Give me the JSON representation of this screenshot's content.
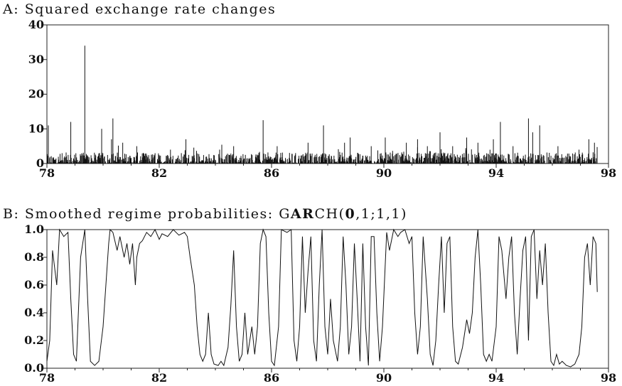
{
  "chart_data": [
    {
      "type": "bar",
      "title_prefix": "A",
      "title": "Squared exchange rate changes",
      "xlim": [
        78,
        98
      ],
      "ylim": [
        0,
        40
      ],
      "x_ticks": [
        "78",
        "82",
        "86",
        "90",
        "94",
        "98"
      ],
      "y_ticks": [
        "0",
        "10",
        "20",
        "30",
        "40"
      ],
      "data_end": 97.6,
      "spikes": [
        {
          "x": 78.05,
          "y": 11
        },
        {
          "x": 78.85,
          "y": 12
        },
        {
          "x": 79.35,
          "y": 34
        },
        {
          "x": 79.95,
          "y": 10
        },
        {
          "x": 80.35,
          "y": 13
        },
        {
          "x": 80.3,
          "y": 7
        },
        {
          "x": 80.7,
          "y": 6
        },
        {
          "x": 81.2,
          "y": 5
        },
        {
          "x": 82.4,
          "y": 4
        },
        {
          "x": 82.95,
          "y": 7
        },
        {
          "x": 84.15,
          "y": 4
        },
        {
          "x": 84.65,
          "y": 5
        },
        {
          "x": 85.7,
          "y": 12.5
        },
        {
          "x": 86.2,
          "y": 5
        },
        {
          "x": 87.3,
          "y": 6
        },
        {
          "x": 87.85,
          "y": 11
        },
        {
          "x": 88.6,
          "y": 6
        },
        {
          "x": 88.8,
          "y": 7.5
        },
        {
          "x": 89.55,
          "y": 5
        },
        {
          "x": 90.05,
          "y": 7.5
        },
        {
          "x": 90.8,
          "y": 6
        },
        {
          "x": 91.2,
          "y": 7
        },
        {
          "x": 91.55,
          "y": 5
        },
        {
          "x": 92.0,
          "y": 9
        },
        {
          "x": 92.45,
          "y": 5
        },
        {
          "x": 92.95,
          "y": 7.5
        },
        {
          "x": 93.35,
          "y": 6
        },
        {
          "x": 93.9,
          "y": 7
        },
        {
          "x": 94.15,
          "y": 12
        },
        {
          "x": 94.6,
          "y": 5
        },
        {
          "x": 95.15,
          "y": 13
        },
        {
          "x": 95.3,
          "y": 9
        },
        {
          "x": 95.55,
          "y": 11
        },
        {
          "x": 96.2,
          "y": 5
        },
        {
          "x": 96.95,
          "y": 4
        },
        {
          "x": 97.3,
          "y": 7
        },
        {
          "x": 97.5,
          "y": 6
        }
      ]
    },
    {
      "type": "line",
      "title_prefix": "B",
      "title_parts": [
        {
          "text": "Smoothed regime probabilities: G",
          "bold": false
        },
        {
          "text": "AR",
          "bold": true
        },
        {
          "text": "CH(",
          "bold": false
        },
        {
          "text": "0",
          "bold": true
        },
        {
          "text": ",1;1,1)",
          "bold": false
        }
      ],
      "xlim": [
        78,
        98
      ],
      "ylim": [
        0,
        1
      ],
      "x_ticks": [
        "78",
        "82",
        "86",
        "90",
        "94",
        "98"
      ],
      "y_ticks": [
        "0.0",
        "0.2",
        "0.4",
        "0.6",
        "0.8",
        "1.0"
      ],
      "points": [
        [
          78.0,
          0.05
        ],
        [
          78.1,
          0.2
        ],
        [
          78.2,
          0.85
        ],
        [
          78.35,
          0.6
        ],
        [
          78.45,
          1.0
        ],
        [
          78.6,
          0.95
        ],
        [
          78.75,
          0.98
        ],
        [
          78.85,
          0.5
        ],
        [
          78.95,
          0.1
        ],
        [
          79.05,
          0.05
        ],
        [
          79.2,
          0.8
        ],
        [
          79.35,
          1.0
        ],
        [
          79.45,
          0.5
        ],
        [
          79.55,
          0.05
        ],
        [
          79.7,
          0.02
        ],
        [
          79.85,
          0.05
        ],
        [
          80.0,
          0.3
        ],
        [
          80.1,
          0.6
        ],
        [
          80.2,
          0.9
        ],
        [
          80.25,
          1.0
        ],
        [
          80.35,
          0.98
        ],
        [
          80.5,
          0.85
        ],
        [
          80.6,
          0.95
        ],
        [
          80.75,
          0.8
        ],
        [
          80.85,
          0.9
        ],
        [
          80.95,
          0.75
        ],
        [
          81.05,
          0.9
        ],
        [
          81.15,
          0.6
        ],
        [
          81.2,
          0.8
        ],
        [
          81.3,
          0.9
        ],
        [
          81.4,
          0.92
        ],
        [
          81.55,
          0.98
        ],
        [
          81.7,
          0.95
        ],
        [
          81.85,
          1.0
        ],
        [
          82.0,
          0.93
        ],
        [
          82.1,
          0.97
        ],
        [
          82.3,
          0.95
        ],
        [
          82.5,
          1.0
        ],
        [
          82.7,
          0.96
        ],
        [
          82.9,
          0.98
        ],
        [
          83.0,
          0.95
        ],
        [
          83.1,
          0.8
        ],
        [
          83.25,
          0.6
        ],
        [
          83.35,
          0.3
        ],
        [
          83.45,
          0.1
        ],
        [
          83.55,
          0.05
        ],
        [
          83.65,
          0.1
        ],
        [
          83.75,
          0.4
        ],
        [
          83.85,
          0.1
        ],
        [
          83.95,
          0.03
        ],
        [
          84.1,
          0.02
        ],
        [
          84.2,
          0.05
        ],
        [
          84.3,
          0.02
        ],
        [
          84.45,
          0.15
        ],
        [
          84.55,
          0.45
        ],
        [
          84.65,
          0.85
        ],
        [
          84.75,
          0.3
        ],
        [
          84.85,
          0.05
        ],
        [
          84.95,
          0.1
        ],
        [
          85.05,
          0.4
        ],
        [
          85.15,
          0.1
        ],
        [
          85.3,
          0.3
        ],
        [
          85.4,
          0.1
        ],
        [
          85.5,
          0.3
        ],
        [
          85.6,
          0.9
        ],
        [
          85.7,
          1.0
        ],
        [
          85.8,
          0.95
        ],
        [
          85.9,
          0.4
        ],
        [
          86.0,
          0.05
        ],
        [
          86.1,
          0.02
        ],
        [
          86.25,
          0.3
        ],
        [
          86.35,
          1.0
        ],
        [
          86.55,
          0.98
        ],
        [
          86.7,
          1.0
        ],
        [
          86.8,
          0.2
        ],
        [
          86.9,
          0.05
        ],
        [
          87.0,
          0.3
        ],
        [
          87.1,
          0.95
        ],
        [
          87.2,
          0.4
        ],
        [
          87.3,
          0.7
        ],
        [
          87.4,
          0.95
        ],
        [
          87.5,
          0.2
        ],
        [
          87.6,
          0.05
        ],
        [
          87.7,
          0.6
        ],
        [
          87.8,
          1.0
        ],
        [
          87.9,
          0.3
        ],
        [
          88.0,
          0.1
        ],
        [
          88.1,
          0.5
        ],
        [
          88.2,
          0.2
        ],
        [
          88.35,
          0.05
        ],
        [
          88.45,
          0.3
        ],
        [
          88.55,
          0.95
        ],
        [
          88.65,
          0.6
        ],
        [
          88.75,
          0.1
        ],
        [
          88.85,
          0.3
        ],
        [
          88.95,
          0.9
        ],
        [
          89.05,
          0.5
        ],
        [
          89.15,
          0.05
        ],
        [
          89.25,
          0.9
        ],
        [
          89.35,
          0.3
        ],
        [
          89.45,
          0.02
        ],
        [
          89.55,
          0.95
        ],
        [
          89.65,
          0.95
        ],
        [
          89.75,
          0.4
        ],
        [
          89.85,
          0.05
        ],
        [
          89.95,
          0.3
        ],
        [
          90.1,
          0.98
        ],
        [
          90.2,
          0.85
        ],
        [
          90.35,
          1.0
        ],
        [
          90.5,
          0.95
        ],
        [
          90.6,
          0.98
        ],
        [
          90.75,
          1.0
        ],
        [
          90.9,
          0.9
        ],
        [
          91.0,
          0.95
        ],
        [
          91.1,
          0.4
        ],
        [
          91.2,
          0.1
        ],
        [
          91.3,
          0.3
        ],
        [
          91.4,
          0.95
        ],
        [
          91.55,
          0.5
        ],
        [
          91.65,
          0.1
        ],
        [
          91.75,
          0.02
        ],
        [
          91.85,
          0.2
        ],
        [
          91.95,
          0.6
        ],
        [
          92.05,
          0.95
        ],
        [
          92.15,
          0.4
        ],
        [
          92.25,
          0.9
        ],
        [
          92.35,
          0.95
        ],
        [
          92.45,
          0.3
        ],
        [
          92.55,
          0.05
        ],
        [
          92.65,
          0.03
        ],
        [
          92.8,
          0.15
        ],
        [
          92.95,
          0.35
        ],
        [
          93.05,
          0.25
        ],
        [
          93.15,
          0.4
        ],
        [
          93.25,
          0.8
        ],
        [
          93.35,
          1.0
        ],
        [
          93.45,
          0.6
        ],
        [
          93.55,
          0.1
        ],
        [
          93.65,
          0.05
        ],
        [
          93.75,
          0.1
        ],
        [
          93.85,
          0.05
        ],
        [
          94.0,
          0.3
        ],
        [
          94.1,
          0.95
        ],
        [
          94.2,
          0.85
        ],
        [
          94.35,
          0.5
        ],
        [
          94.45,
          0.8
        ],
        [
          94.55,
          0.95
        ],
        [
          94.65,
          0.4
        ],
        [
          94.75,
          0.1
        ],
        [
          94.85,
          0.5
        ],
        [
          94.95,
          0.85
        ],
        [
          95.05,
          0.95
        ],
        [
          95.15,
          0.2
        ],
        [
          95.25,
          0.95
        ],
        [
          95.35,
          1.0
        ],
        [
          95.45,
          0.5
        ],
        [
          95.55,
          0.85
        ],
        [
          95.65,
          0.6
        ],
        [
          95.75,
          0.9
        ],
        [
          95.85,
          0.4
        ],
        [
          95.95,
          0.05
        ],
        [
          96.05,
          0.02
        ],
        [
          96.15,
          0.1
        ],
        [
          96.25,
          0.03
        ],
        [
          96.35,
          0.05
        ],
        [
          96.5,
          0.02
        ],
        [
          96.65,
          0.01
        ],
        [
          96.8,
          0.03
        ],
        [
          96.95,
          0.1
        ],
        [
          97.05,
          0.3
        ],
        [
          97.15,
          0.8
        ],
        [
          97.25,
          0.9
        ],
        [
          97.35,
          0.6
        ],
        [
          97.45,
          0.95
        ],
        [
          97.55,
          0.9
        ],
        [
          97.6,
          0.55
        ]
      ]
    }
  ]
}
